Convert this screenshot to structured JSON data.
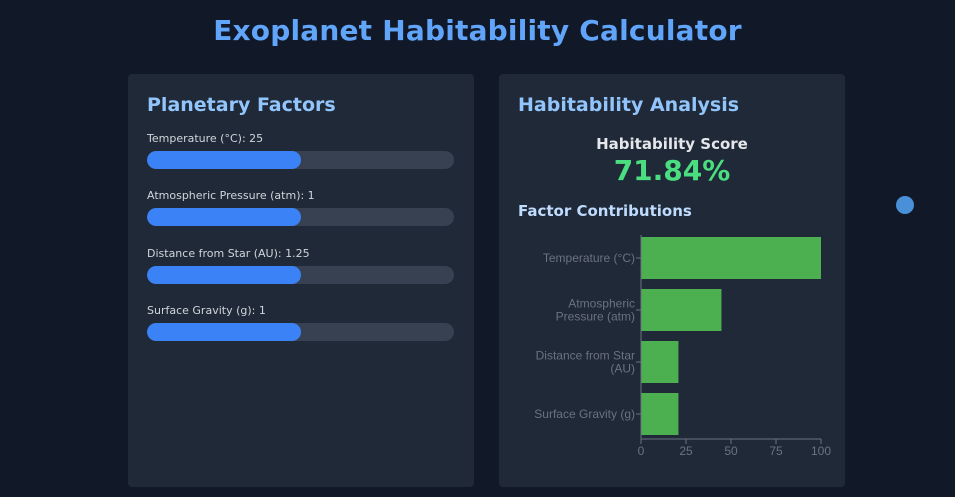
{
  "page": {
    "title": "Exoplanet Habitability Calculator"
  },
  "factors_panel": {
    "heading": "Planetary Factors",
    "factors": [
      {
        "label": "Temperature (°C): 25",
        "fill": 0.5
      },
      {
        "label": "Atmospheric Pressure (atm): 1",
        "fill": 0.5
      },
      {
        "label": "Distance from Star (AU): 1.25",
        "fill": 0.5
      },
      {
        "label": "Surface Gravity (g): 1",
        "fill": 0.5
      }
    ]
  },
  "analysis_panel": {
    "heading": "Habitability Analysis",
    "score_label": "Habitability Score",
    "score_value": "71.84%",
    "contributions_heading": "Factor Contributions"
  },
  "chart_data": {
    "type": "bar",
    "orientation": "horizontal",
    "categories": [
      [
        "Temperature (°C)"
      ],
      [
        "Atmospheric",
        "Pressure (atm)"
      ],
      [
        "Distance from Star",
        "(AU)"
      ],
      [
        "Surface Gravity (g)"
      ]
    ],
    "values": [
      100,
      44.7,
      20.8,
      20.8
    ],
    "xlim": [
      0,
      100
    ],
    "xticks": [
      0,
      25,
      50,
      75,
      100
    ],
    "bar_color": "#4caf50",
    "axis_color": "#6b7280",
    "grid": false
  },
  "colors": {
    "background": "#111827",
    "panel": "#1f2937",
    "accent": "#3b82f6",
    "score": "#4ade80"
  }
}
